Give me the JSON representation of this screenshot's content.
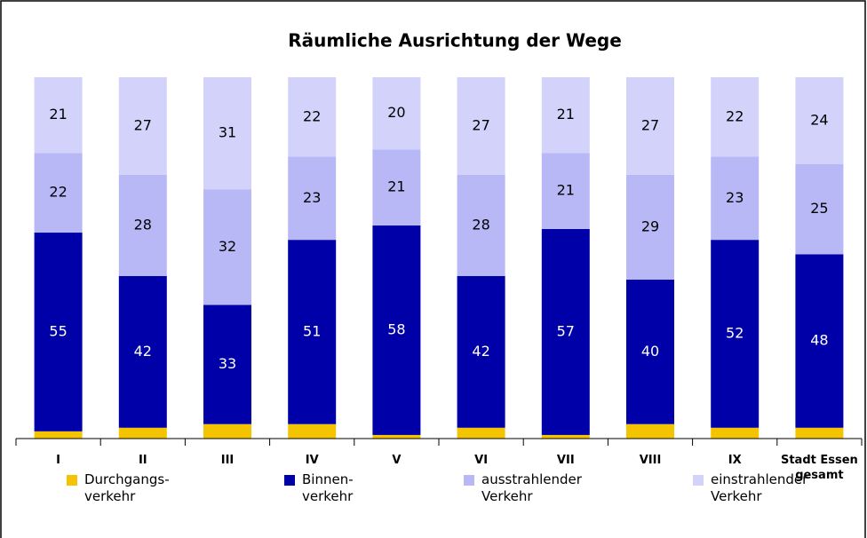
{
  "chart_data": {
    "type": "stacked_bar",
    "title": "Räumliche Ausrichtung der Wege",
    "categories": [
      "I",
      "II",
      "III",
      "IV",
      "V",
      "VI",
      "VII",
      "VIII",
      "IX",
      "Stadt Essen\ngesamt"
    ],
    "ylim": [
      0,
      100
    ],
    "series": [
      {
        "name": "Durchgangs-\nverkehr",
        "color": "#f5c400",
        "data_labels": false,
        "values": [
          2,
          3,
          4,
          4,
          1,
          3,
          1,
          4,
          3,
          3
        ]
      },
      {
        "name": "Binnen-\nverkehr",
        "color": "#0000a8",
        "data_labels": true,
        "label_color": "#ffffff",
        "values": [
          55,
          42,
          33,
          51,
          58,
          42,
          57,
          40,
          52,
          48
        ]
      },
      {
        "name": "ausstrahlender\nVerkehr",
        "color": "#b8b8f6",
        "data_labels": true,
        "label_color": "#000000",
        "values": [
          22,
          28,
          32,
          23,
          21,
          28,
          21,
          29,
          23,
          25
        ]
      },
      {
        "name": "einstrahlender\nVerkehr",
        "color": "#d2d2fb",
        "data_labels": true,
        "label_color": "#000000",
        "values": [
          21,
          27,
          31,
          22,
          20,
          27,
          21,
          27,
          22,
          24
        ]
      }
    ]
  }
}
